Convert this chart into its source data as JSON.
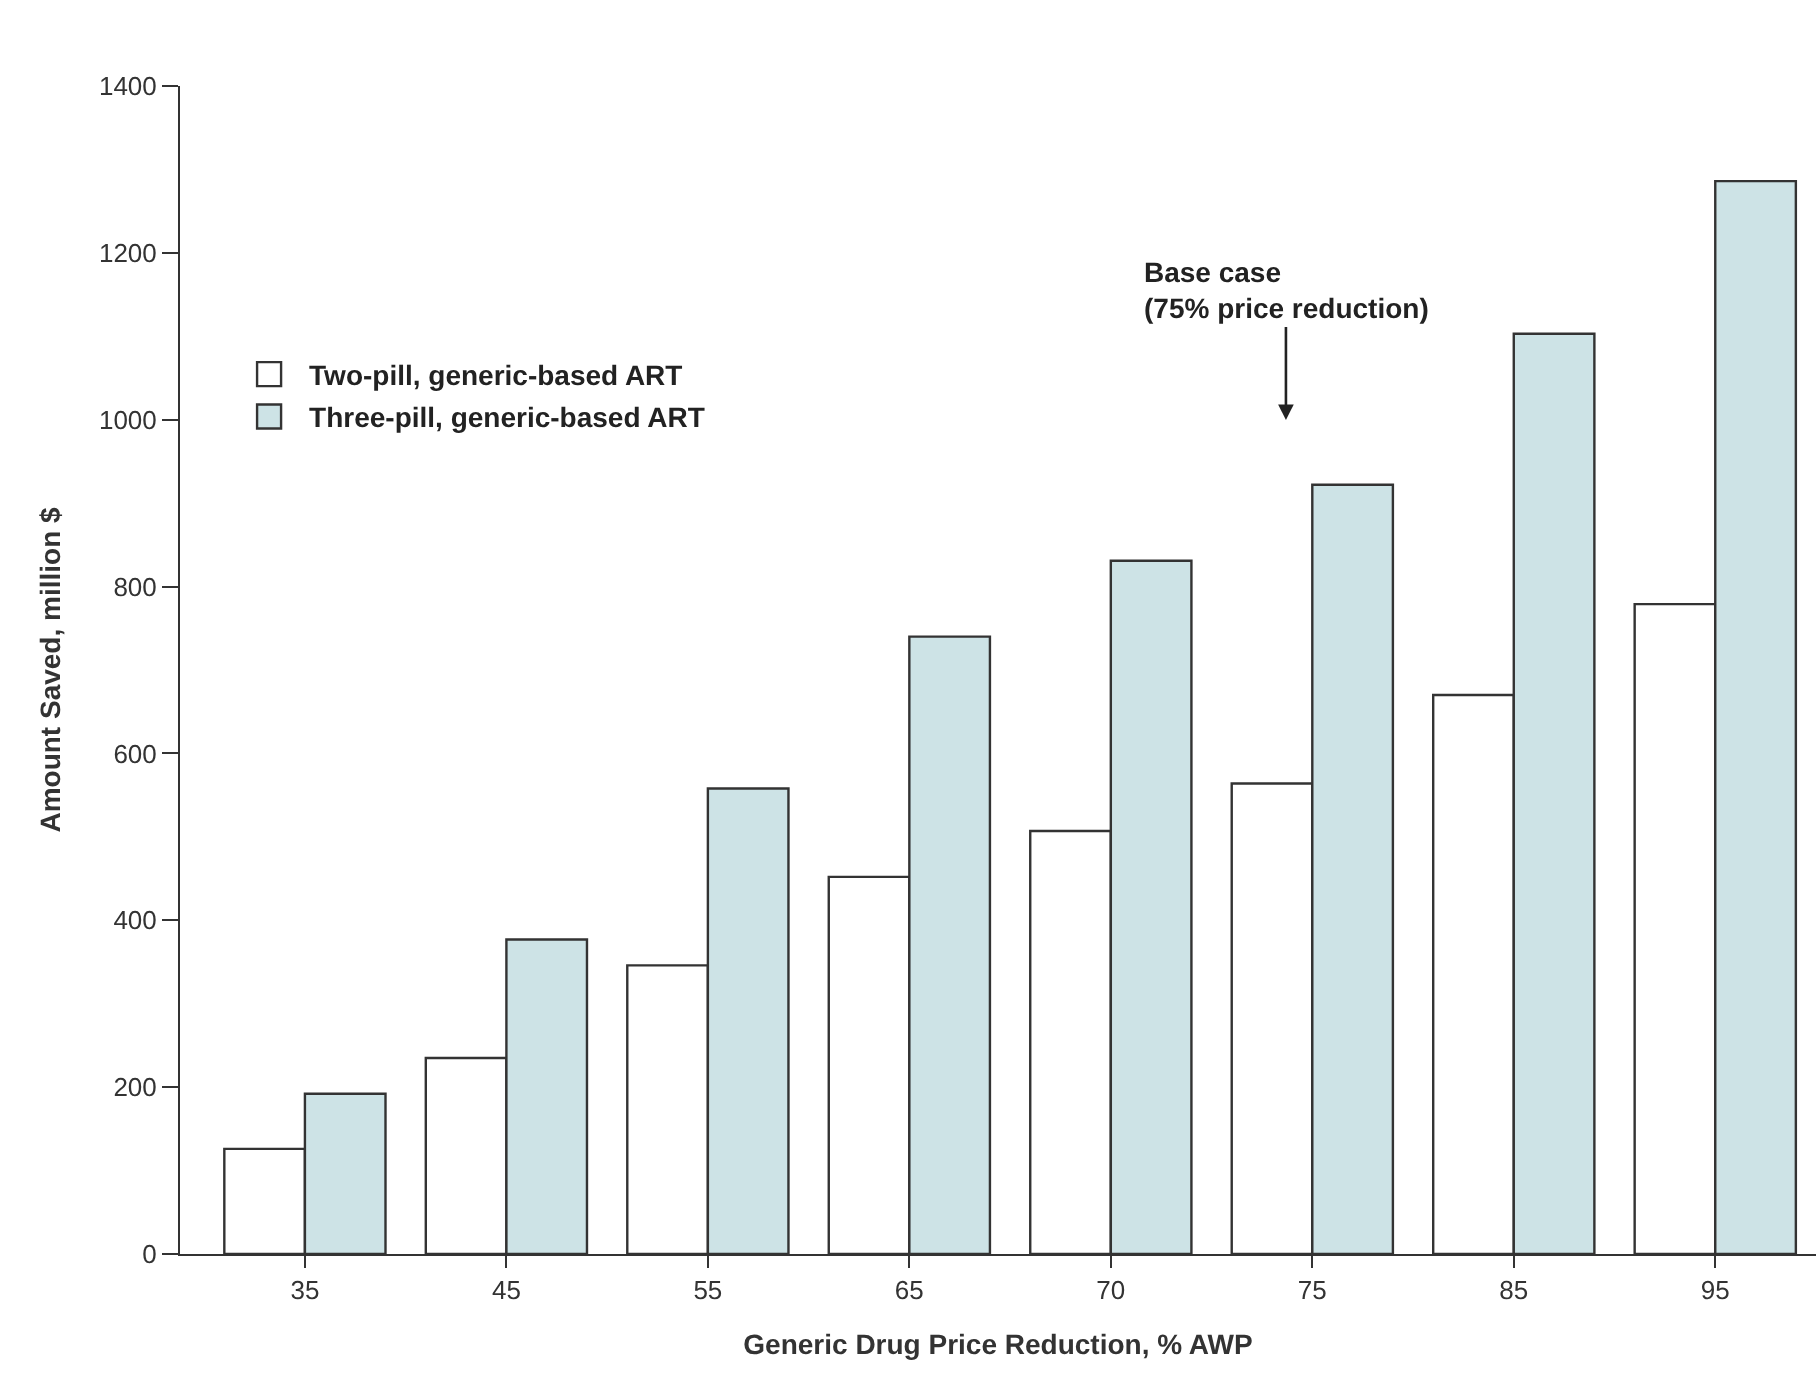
{
  "chart_data": {
    "type": "bar",
    "xlabel": "Generic Drug Price Reduction, % AWP",
    "ylabel": "Amount Saved, million $",
    "categories": [
      "35",
      "45",
      "55",
      "65",
      "70",
      "75",
      "85",
      "95"
    ],
    "series": [
      {
        "name": "Two-pill, generic-based ART",
        "color": "#ffffff",
        "values": [
          126,
          235,
          346,
          452,
          507,
          564,
          670,
          779
        ]
      },
      {
        "name": "Three-pill, generic-based ART",
        "color": "#cde3e6",
        "values": [
          192,
          377,
          558,
          740,
          831,
          922,
          1103,
          1286
        ]
      }
    ],
    "ylim": [
      0,
      1400
    ],
    "yticks": [
      0,
      200,
      400,
      600,
      800,
      1000,
      1200,
      1400
    ],
    "legend": "top left",
    "annotations": [
      "Base case\n(75% price reduction)"
    ]
  }
}
